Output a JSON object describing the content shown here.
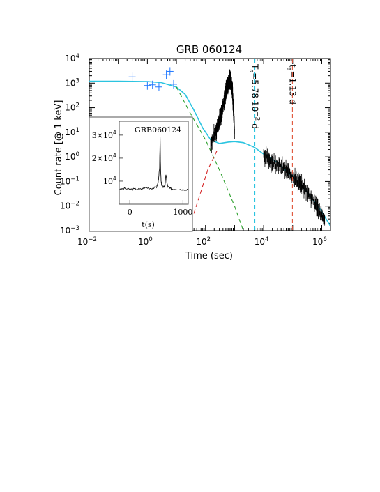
{
  "chart_data": [
    {
      "type": "line",
      "title": "GRB 060124",
      "xlabel": "Time (sec)",
      "ylabel": "Count rate [@ 1 keV]",
      "x_scale": "log",
      "y_scale": "log",
      "xlim": [
        0.01,
        2000000
      ],
      "ylim": [
        0.001,
        10000
      ],
      "x_ticks": [
        0.01,
        1,
        100,
        10000,
        1000000
      ],
      "x_tick_labels": [
        {
          "base": "10",
          "exp": "−2"
        },
        {
          "base": "10",
          "exp": "0"
        },
        {
          "base": "10",
          "exp": "2"
        },
        {
          "base": "10",
          "exp": "4"
        },
        {
          "base": "10",
          "exp": "6"
        }
      ],
      "y_ticks": [
        0.001,
        0.01,
        0.1,
        1,
        10,
        100,
        1000,
        10000
      ],
      "y_tick_labels": [
        {
          "base": "10",
          "exp": "−3"
        },
        {
          "base": "10",
          "exp": "−2"
        },
        {
          "base": "10",
          "exp": "−1"
        },
        {
          "base": "10",
          "exp": "0"
        },
        {
          "base": "10",
          "exp": "1"
        },
        {
          "base": "10",
          "exp": "2"
        },
        {
          "base": "10",
          "exp": "3"
        },
        {
          "base": "10",
          "exp": "4"
        }
      ],
      "grid": false,
      "colors": {
        "model_fit": "#2bc4e0",
        "prompt_component": "#2ca02c",
        "afterglow_component": "#d62728",
        "early_data": "#1f77ff",
        "data": "#000000",
        "t_line_1": "#2bc4e0",
        "t_line_2": "#e0553a"
      },
      "series": [
        {
          "style": "solid",
          "color_key": "model_fit",
          "x": [
            0.01,
            0.1,
            1,
            3,
            10,
            20,
            40,
            80,
            150,
            300,
            600,
            1000,
            2000,
            5000,
            10000,
            30000,
            100000,
            300000,
            1000000,
            2000000
          ],
          "y": [
            1200,
            1200,
            1150,
            1050,
            700,
            350,
            80,
            15,
            5,
            3.5,
            4,
            4.2,
            3.8,
            2.4,
            1.3,
            0.6,
            0.15,
            0.04,
            0.006,
            0.0015
          ]
        },
        {
          "style": "dashed",
          "color_key": "prompt_component",
          "x": [
            10,
            30,
            100,
            300,
            1000,
            2000
          ],
          "y": [
            700,
            60,
            5,
            0.3,
            0.01,
            0.001
          ]
        },
        {
          "style": "dashed",
          "color_key": "afterglow_component",
          "x": [
            40,
            70,
            120,
            250
          ],
          "y": [
            0.005,
            0.04,
            0.3,
            1.8
          ]
        },
        {
          "style": "error_bars",
          "color_key": "early_data",
          "x": [
            0.3,
            1.0,
            1.5,
            2.5,
            4.5,
            6,
            8
          ],
          "y": [
            1800,
            800,
            850,
            700,
            2200,
            3000,
            900
          ]
        },
        {
          "style": "noisy",
          "color_key": "data",
          "x": [
            150,
            200,
            250,
            300,
            350,
            400,
            450,
            500,
            550,
            600,
            650,
            700,
            750,
            800,
            850,
            900,
            950,
            1000
          ],
          "y": [
            3,
            8,
            15,
            30,
            60,
            120,
            250,
            450,
            700,
            900,
            1200,
            1400,
            1100,
            800,
            400,
            120,
            40,
            10
          ]
        },
        {
          "style": "noisy",
          "color_key": "data",
          "x": [
            10000,
            15000,
            22000,
            35000,
            55000,
            80000,
            120000,
            180000,
            260000,
            400000,
            600000,
            900000,
            1300000
          ],
          "y": [
            1.2,
            0.8,
            0.6,
            0.45,
            0.3,
            0.2,
            0.13,
            0.08,
            0.05,
            0.025,
            0.012,
            0.005,
            0.002
          ]
        }
      ],
      "vertical_lines": [
        {
          "x": 5000,
          "color_key": "t_line_1",
          "sym": "T",
          "sub": "a",
          "value": "=5.78 10",
          "exp": "−2",
          "unit": " d"
        },
        {
          "x": 98000,
          "color_key": "t_line_2",
          "sym": "t",
          "sub": "a",
          "value": "=1.13",
          "exp": "",
          "unit": " d"
        }
      ]
    },
    {
      "type": "line",
      "title": "GRB060124",
      "xlabel": "t(s)",
      "ylabel": "",
      "xlim": [
        -200,
        1100
      ],
      "ylim": [
        0,
        36000
      ],
      "x_ticks": [
        0,
        1000
      ],
      "x_tick_labels": [
        "0",
        "1000"
      ],
      "y_ticks": [
        10000,
        20000,
        30000
      ],
      "y_tick_labels": [
        {
          "mant": "",
          "base": "10",
          "exp": "4"
        },
        {
          "mant": "2×",
          "base": "10",
          "exp": "4"
        },
        {
          "mant": "3×",
          "base": "10",
          "exp": "4"
        }
      ],
      "series": [
        {
          "x": [
            -200,
            -100,
            0,
            100,
            200,
            300,
            400,
            500,
            520,
            540,
            560,
            570,
            580,
            590,
            600,
            620,
            660,
            680,
            700,
            720,
            760,
            800,
            900,
            1000,
            1100
          ],
          "y": [
            6500,
            6800,
            6400,
            6600,
            6500,
            7200,
            6900,
            7300,
            8500,
            10500,
            16000,
            29000,
            14000,
            9500,
            8200,
            7600,
            7700,
            13000,
            9000,
            7500,
            6800,
            6700,
            6600,
            6400,
            6500
          ]
        }
      ]
    }
  ]
}
